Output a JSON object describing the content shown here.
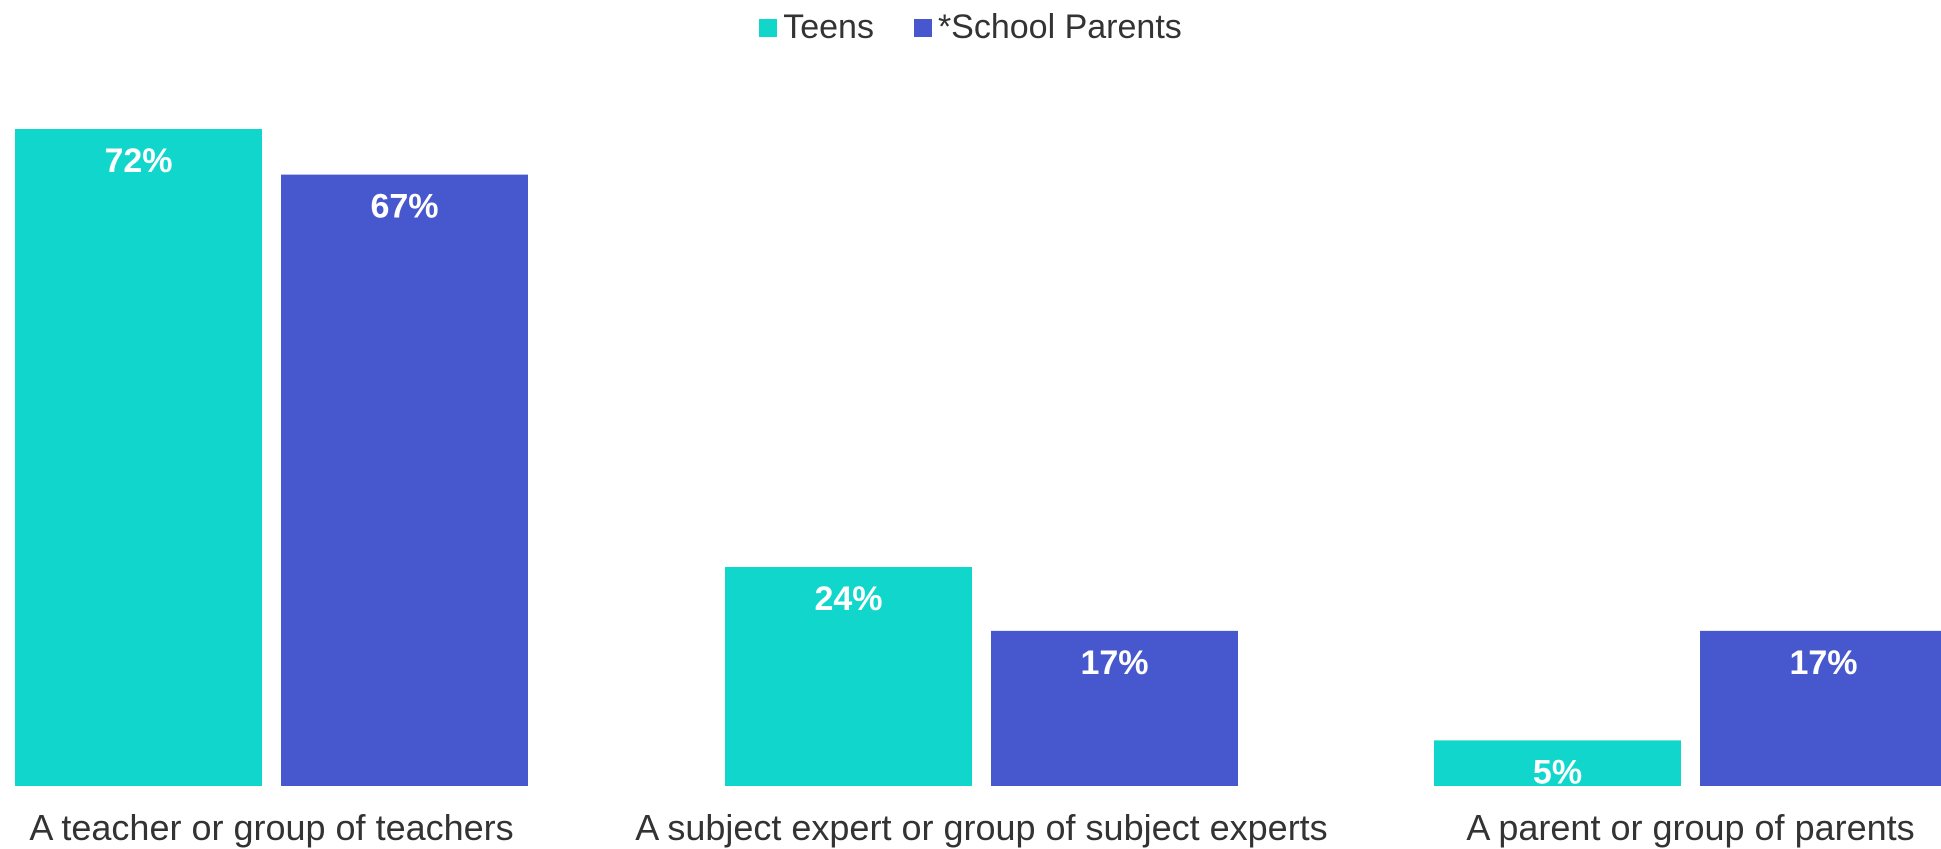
{
  "chart_data": {
    "type": "bar",
    "title": "",
    "xlabel": "",
    "ylabel": "",
    "categories": [
      "A teacher or group of teachers",
      "A subject expert or group of subject experts",
      "A parent or group of parents"
    ],
    "series": [
      {
        "name": "Teens",
        "values": [
          72,
          24,
          5
        ],
        "labels": [
          "72%",
          "24%",
          "5%"
        ],
        "color": "#10D6CC"
      },
      {
        "name": "*School Parents",
        "values": [
          67,
          17,
          17
        ],
        "labels": [
          "67%",
          "17%",
          "17%"
        ],
        "color": "#4758CE"
      }
    ],
    "ylim": [
      0,
      72
    ],
    "grid": false,
    "legend_position": "top-center"
  }
}
